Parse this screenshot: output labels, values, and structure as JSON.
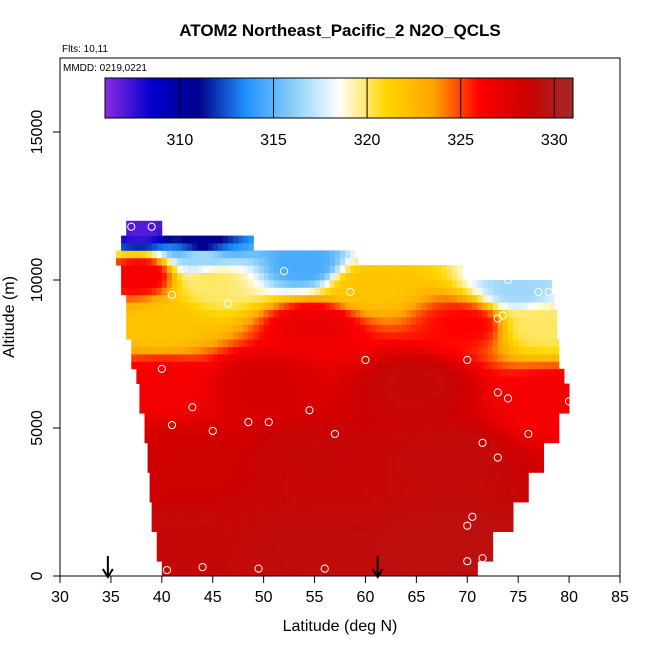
{
  "chart_data": {
    "type": "heatmap",
    "title": "ATOM2 Northeast_Pacific_2 N2O_QCLS",
    "flights_label": "Flts: 10,11",
    "mmdd_label": "MMDD: 0219,0221",
    "xlabel": "Latitude (deg N)",
    "ylabel": "Altitude (m)",
    "xlim": [
      30,
      85
    ],
    "ylim": [
      0,
      17500
    ],
    "x_ticks": [
      30,
      35,
      40,
      45,
      50,
      55,
      60,
      65,
      70,
      75,
      80,
      85
    ],
    "y_ticks": [
      0,
      5000,
      10000,
      15000
    ],
    "colorbar": {
      "range": [
        306,
        331
      ],
      "ticks": [
        310,
        315,
        320,
        325,
        330
      ],
      "colors": [
        "#8a2be2",
        "#0000cd",
        "#00008b",
        "#1e90ff",
        "#87cefa",
        "#ffffff",
        "#ffd700",
        "#ffa500",
        "#ff0000",
        "#cc0000",
        "#a52a2a"
      ]
    },
    "grid": false,
    "field_points": [
      {
        "lat": 42,
        "alt": 1000,
        "value": 329
      },
      {
        "lat": 55,
        "alt": 1000,
        "value": 329.2
      },
      {
        "lat": 68,
        "alt": 1000,
        "value": 329.4
      },
      {
        "lat": 42,
        "alt": 4000,
        "value": 328.4
      },
      {
        "lat": 55,
        "alt": 4000,
        "value": 328.9
      },
      {
        "lat": 68,
        "alt": 4000,
        "value": 329.1
      },
      {
        "lat": 40,
        "alt": 6500,
        "value": 326.5
      },
      {
        "lat": 50,
        "alt": 6500,
        "value": 328
      },
      {
        "lat": 65,
        "alt": 6500,
        "value": 329
      },
      {
        "lat": 78,
        "alt": 6000,
        "value": 326.5
      },
      {
        "lat": 40,
        "alt": 8500,
        "value": 322
      },
      {
        "lat": 55,
        "alt": 8500,
        "value": 327
      },
      {
        "lat": 70,
        "alt": 8500,
        "value": 326
      },
      {
        "lat": 77,
        "alt": 8500,
        "value": 320
      },
      {
        "lat": 38,
        "alt": 10200,
        "value": 326.5
      },
      {
        "lat": 45,
        "alt": 10000,
        "value": 320
      },
      {
        "lat": 60,
        "alt": 9800,
        "value": 322
      },
      {
        "lat": 75,
        "alt": 9700,
        "value": 316.5
      },
      {
        "lat": 44,
        "alt": 10800,
        "value": 316.5
      },
      {
        "lat": 54,
        "alt": 10500,
        "value": 314.5
      },
      {
        "lat": 44,
        "alt": 11300,
        "value": 310.5
      },
      {
        "lat": 38,
        "alt": 11800,
        "value": 307
      }
    ],
    "obs_points": [
      {
        "lat": 37,
        "alt": 11800
      },
      {
        "lat": 39,
        "alt": 11800
      },
      {
        "lat": 52,
        "alt": 10300
      },
      {
        "lat": 41,
        "alt": 9500
      },
      {
        "lat": 58.5,
        "alt": 9600
      },
      {
        "lat": 74,
        "alt": 10000
      },
      {
        "lat": 77,
        "alt": 9600
      },
      {
        "lat": 78,
        "alt": 9600
      },
      {
        "lat": 46.5,
        "alt": 9200
      },
      {
        "lat": 73.5,
        "alt": 8800
      },
      {
        "lat": 73,
        "alt": 8700
      },
      {
        "lat": 60,
        "alt": 7300
      },
      {
        "lat": 70,
        "alt": 7300
      },
      {
        "lat": 40,
        "alt": 7000
      },
      {
        "lat": 73,
        "alt": 6200
      },
      {
        "lat": 74,
        "alt": 6000
      },
      {
        "lat": 80,
        "alt": 5900
      },
      {
        "lat": 43,
        "alt": 5700
      },
      {
        "lat": 54.5,
        "alt": 5600
      },
      {
        "lat": 50.5,
        "alt": 5200
      },
      {
        "lat": 48.5,
        "alt": 5200
      },
      {
        "lat": 41,
        "alt": 5100
      },
      {
        "lat": 45,
        "alt": 4900
      },
      {
        "lat": 57,
        "alt": 4800
      },
      {
        "lat": 76,
        "alt": 4800
      },
      {
        "lat": 71.5,
        "alt": 4500
      },
      {
        "lat": 73,
        "alt": 4000
      },
      {
        "lat": 70.5,
        "alt": 2000
      },
      {
        "lat": 70,
        "alt": 1700
      },
      {
        "lat": 71.5,
        "alt": 600
      },
      {
        "lat": 70,
        "alt": 500
      },
      {
        "lat": 40.5,
        "alt": 200
      },
      {
        "lat": 44,
        "alt": 300
      },
      {
        "lat": 49.5,
        "alt": 250
      },
      {
        "lat": 56,
        "alt": 250
      }
    ],
    "arrows": [
      {
        "lat": 34.7
      },
      {
        "lat": 61.2
      }
    ],
    "domain_profile": [
      {
        "alt_lo": 0,
        "alt_hi": 500,
        "lat_min": 40,
        "lat_max": 71
      },
      {
        "alt_lo": 500,
        "alt_hi": 1500,
        "lat_min": 39.5,
        "lat_max": 72.5
      },
      {
        "alt_lo": 1500,
        "alt_hi": 2500,
        "lat_min": 39,
        "lat_max": 74.5
      },
      {
        "alt_lo": 2500,
        "alt_hi": 3500,
        "lat_min": 38.8,
        "lat_max": 76
      },
      {
        "alt_lo": 3500,
        "alt_hi": 4500,
        "lat_min": 38.6,
        "lat_max": 77.5
      },
      {
        "alt_lo": 4500,
        "alt_hi": 5500,
        "lat_min": 38.3,
        "lat_max": 79
      },
      {
        "alt_lo": 5500,
        "alt_hi": 6500,
        "lat_min": 37.8,
        "lat_max": 80
      },
      {
        "alt_lo": 6500,
        "alt_hi": 7000,
        "lat_min": 37.5,
        "lat_max": 79.5
      },
      {
        "alt_lo": 7000,
        "alt_hi": 8000,
        "lat_min": 37,
        "lat_max": 79
      },
      {
        "alt_lo": 8000,
        "alt_hi": 9000,
        "lat_min": 36.5,
        "lat_max": 78.8
      },
      {
        "alt_lo": 9000,
        "alt_hi": 9500,
        "lat_min": 36.5,
        "lat_max": 78.5
      },
      {
        "alt_lo": 9500,
        "alt_hi": 10000,
        "lat_min": 36,
        "lat_max": 78.3
      },
      {
        "alt_lo": 10000,
        "alt_hi": 10500,
        "lat_min": 36,
        "lat_max": 69.5
      },
      {
        "alt_lo": 10500,
        "alt_hi": 11000,
        "lat_min": 35.5,
        "lat_max": 59.2
      },
      {
        "alt_lo": 11000,
        "alt_hi": 11500,
        "lat_min": 36,
        "lat_max": 49
      },
      {
        "alt_lo": 11500,
        "alt_hi": 12000,
        "lat_min": 36.5,
        "lat_max": 40
      }
    ]
  }
}
